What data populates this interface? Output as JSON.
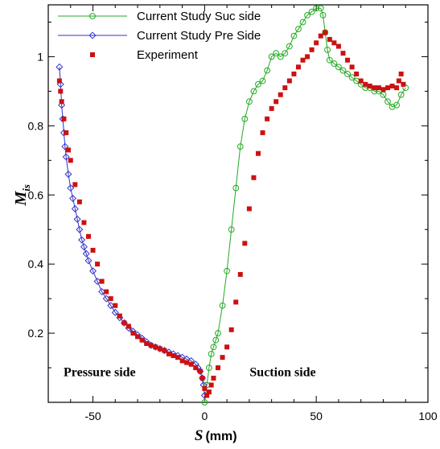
{
  "chart_data": {
    "type": "scatter",
    "xlabel": {
      "symbol": "S",
      "unit": "(mm)"
    },
    "ylabel": {
      "symbol": "M",
      "subscript": "is"
    },
    "xlim": [
      -70,
      100
    ],
    "ylim": [
      0.0,
      1.15
    ],
    "x_ticks": [
      -50,
      0,
      50,
      100
    ],
    "y_ticks": [
      0.2,
      0.4,
      0.6,
      0.8,
      1.0
    ],
    "y_tick_labels": [
      "0.2",
      "0.4",
      "0.6",
      "0.8",
      "1"
    ],
    "x_tick_labels": [
      "-50",
      "0",
      "50",
      "100"
    ],
    "grid": false,
    "legend_position": "top-left",
    "annotations": [
      {
        "text": "Pressure side",
        "x": -47,
        "y": 0.09
      },
      {
        "text": "Suction side",
        "x": 35,
        "y": 0.09
      }
    ],
    "series": [
      {
        "name": "Current Study Suc side",
        "color": "#22aa22",
        "marker": "circle-open",
        "line": true,
        "x": [
          0,
          1,
          2,
          3,
          4,
          5,
          6,
          8,
          10,
          12,
          14,
          16,
          18,
          20,
          22,
          24,
          26,
          28,
          30,
          32,
          34,
          36,
          38,
          40,
          42,
          44,
          46,
          48,
          50,
          52,
          53,
          54,
          55,
          56,
          58,
          60,
          62,
          64,
          66,
          68,
          70,
          72,
          74,
          76,
          78,
          80,
          82,
          84,
          86,
          88,
          90
        ],
        "y": [
          0.0,
          0.05,
          0.1,
          0.14,
          0.16,
          0.18,
          0.2,
          0.28,
          0.38,
          0.5,
          0.62,
          0.74,
          0.82,
          0.87,
          0.9,
          0.92,
          0.93,
          0.96,
          1.0,
          1.01,
          1.0,
          1.01,
          1.03,
          1.06,
          1.08,
          1.1,
          1.12,
          1.13,
          1.14,
          1.14,
          1.12,
          1.07,
          1.02,
          0.99,
          0.98,
          0.97,
          0.96,
          0.95,
          0.94,
          0.93,
          0.92,
          0.91,
          0.91,
          0.9,
          0.9,
          0.89,
          0.87,
          0.855,
          0.86,
          0.89,
          0.91
        ]
      },
      {
        "name": "Current Study Pre Side",
        "color": "#3333cc",
        "marker": "diamond-open",
        "line": true,
        "x": [
          -65,
          -64.5,
          -64,
          -63.5,
          -63,
          -62.5,
          -62,
          -61,
          -60,
          -59,
          -58,
          -57,
          -56,
          -55,
          -54,
          -53,
          -52,
          -50,
          -48,
          -46,
          -44,
          -42,
          -40,
          -38,
          -36,
          -34,
          -32,
          -30,
          -28,
          -26,
          -24,
          -22,
          -20,
          -18,
          -16,
          -14,
          -12,
          -10,
          -8,
          -6,
          -4,
          -3,
          -2,
          -1,
          -0.5,
          0
        ],
        "y": [
          0.97,
          0.92,
          0.86,
          0.82,
          0.78,
          0.74,
          0.71,
          0.66,
          0.62,
          0.59,
          0.56,
          0.53,
          0.5,
          0.47,
          0.45,
          0.43,
          0.41,
          0.38,
          0.35,
          0.32,
          0.3,
          0.28,
          0.26,
          0.245,
          0.23,
          0.215,
          0.205,
          0.195,
          0.185,
          0.175,
          0.165,
          0.16,
          0.155,
          0.15,
          0.145,
          0.14,
          0.135,
          0.13,
          0.125,
          0.12,
          0.11,
          0.1,
          0.09,
          0.07,
          0.05,
          0.02
        ]
      },
      {
        "name": "Experiment",
        "color": "#cc1111",
        "marker": "square-filled",
        "line": false,
        "x": [
          -65,
          -64.5,
          -64,
          -63,
          -62,
          -61,
          -60,
          -58,
          -56,
          -54,
          -52,
          -50,
          -48,
          -46,
          -44,
          -42,
          -40,
          -38,
          -36,
          -34,
          -32,
          -30,
          -28,
          -26,
          -24,
          -22,
          -20,
          -18,
          -16,
          -14,
          -12,
          -10,
          -8,
          -6,
          -4,
          -2,
          -1,
          0,
          1,
          2,
          3,
          4,
          6,
          8,
          10,
          12,
          14,
          16,
          18,
          20,
          22,
          24,
          26,
          28,
          30,
          32,
          34,
          36,
          38,
          40,
          42,
          44,
          46,
          48,
          50,
          52,
          54,
          56,
          58,
          60,
          62,
          64,
          66,
          68,
          70,
          72,
          74,
          76,
          78,
          80,
          82,
          84,
          86,
          87,
          88,
          89
        ],
        "y": [
          0.93,
          0.9,
          0.87,
          0.82,
          0.78,
          0.73,
          0.7,
          0.63,
          0.58,
          0.52,
          0.48,
          0.44,
          0.4,
          0.35,
          0.32,
          0.3,
          0.28,
          0.25,
          0.23,
          0.22,
          0.2,
          0.19,
          0.18,
          0.17,
          0.165,
          0.16,
          0.155,
          0.15,
          0.14,
          0.135,
          0.13,
          0.12,
          0.115,
          0.11,
          0.1,
          0.09,
          0.07,
          0.04,
          0.02,
          0.03,
          0.05,
          0.07,
          0.1,
          0.13,
          0.16,
          0.21,
          0.29,
          0.37,
          0.46,
          0.56,
          0.65,
          0.72,
          0.78,
          0.82,
          0.85,
          0.87,
          0.89,
          0.91,
          0.93,
          0.95,
          0.97,
          0.99,
          1.0,
          1.02,
          1.04,
          1.06,
          1.07,
          1.05,
          1.04,
          1.03,
          1.01,
          0.99,
          0.97,
          0.95,
          0.93,
          0.92,
          0.915,
          0.91,
          0.91,
          0.905,
          0.91,
          0.915,
          0.91,
          0.93,
          0.95,
          0.92
        ]
      }
    ]
  }
}
